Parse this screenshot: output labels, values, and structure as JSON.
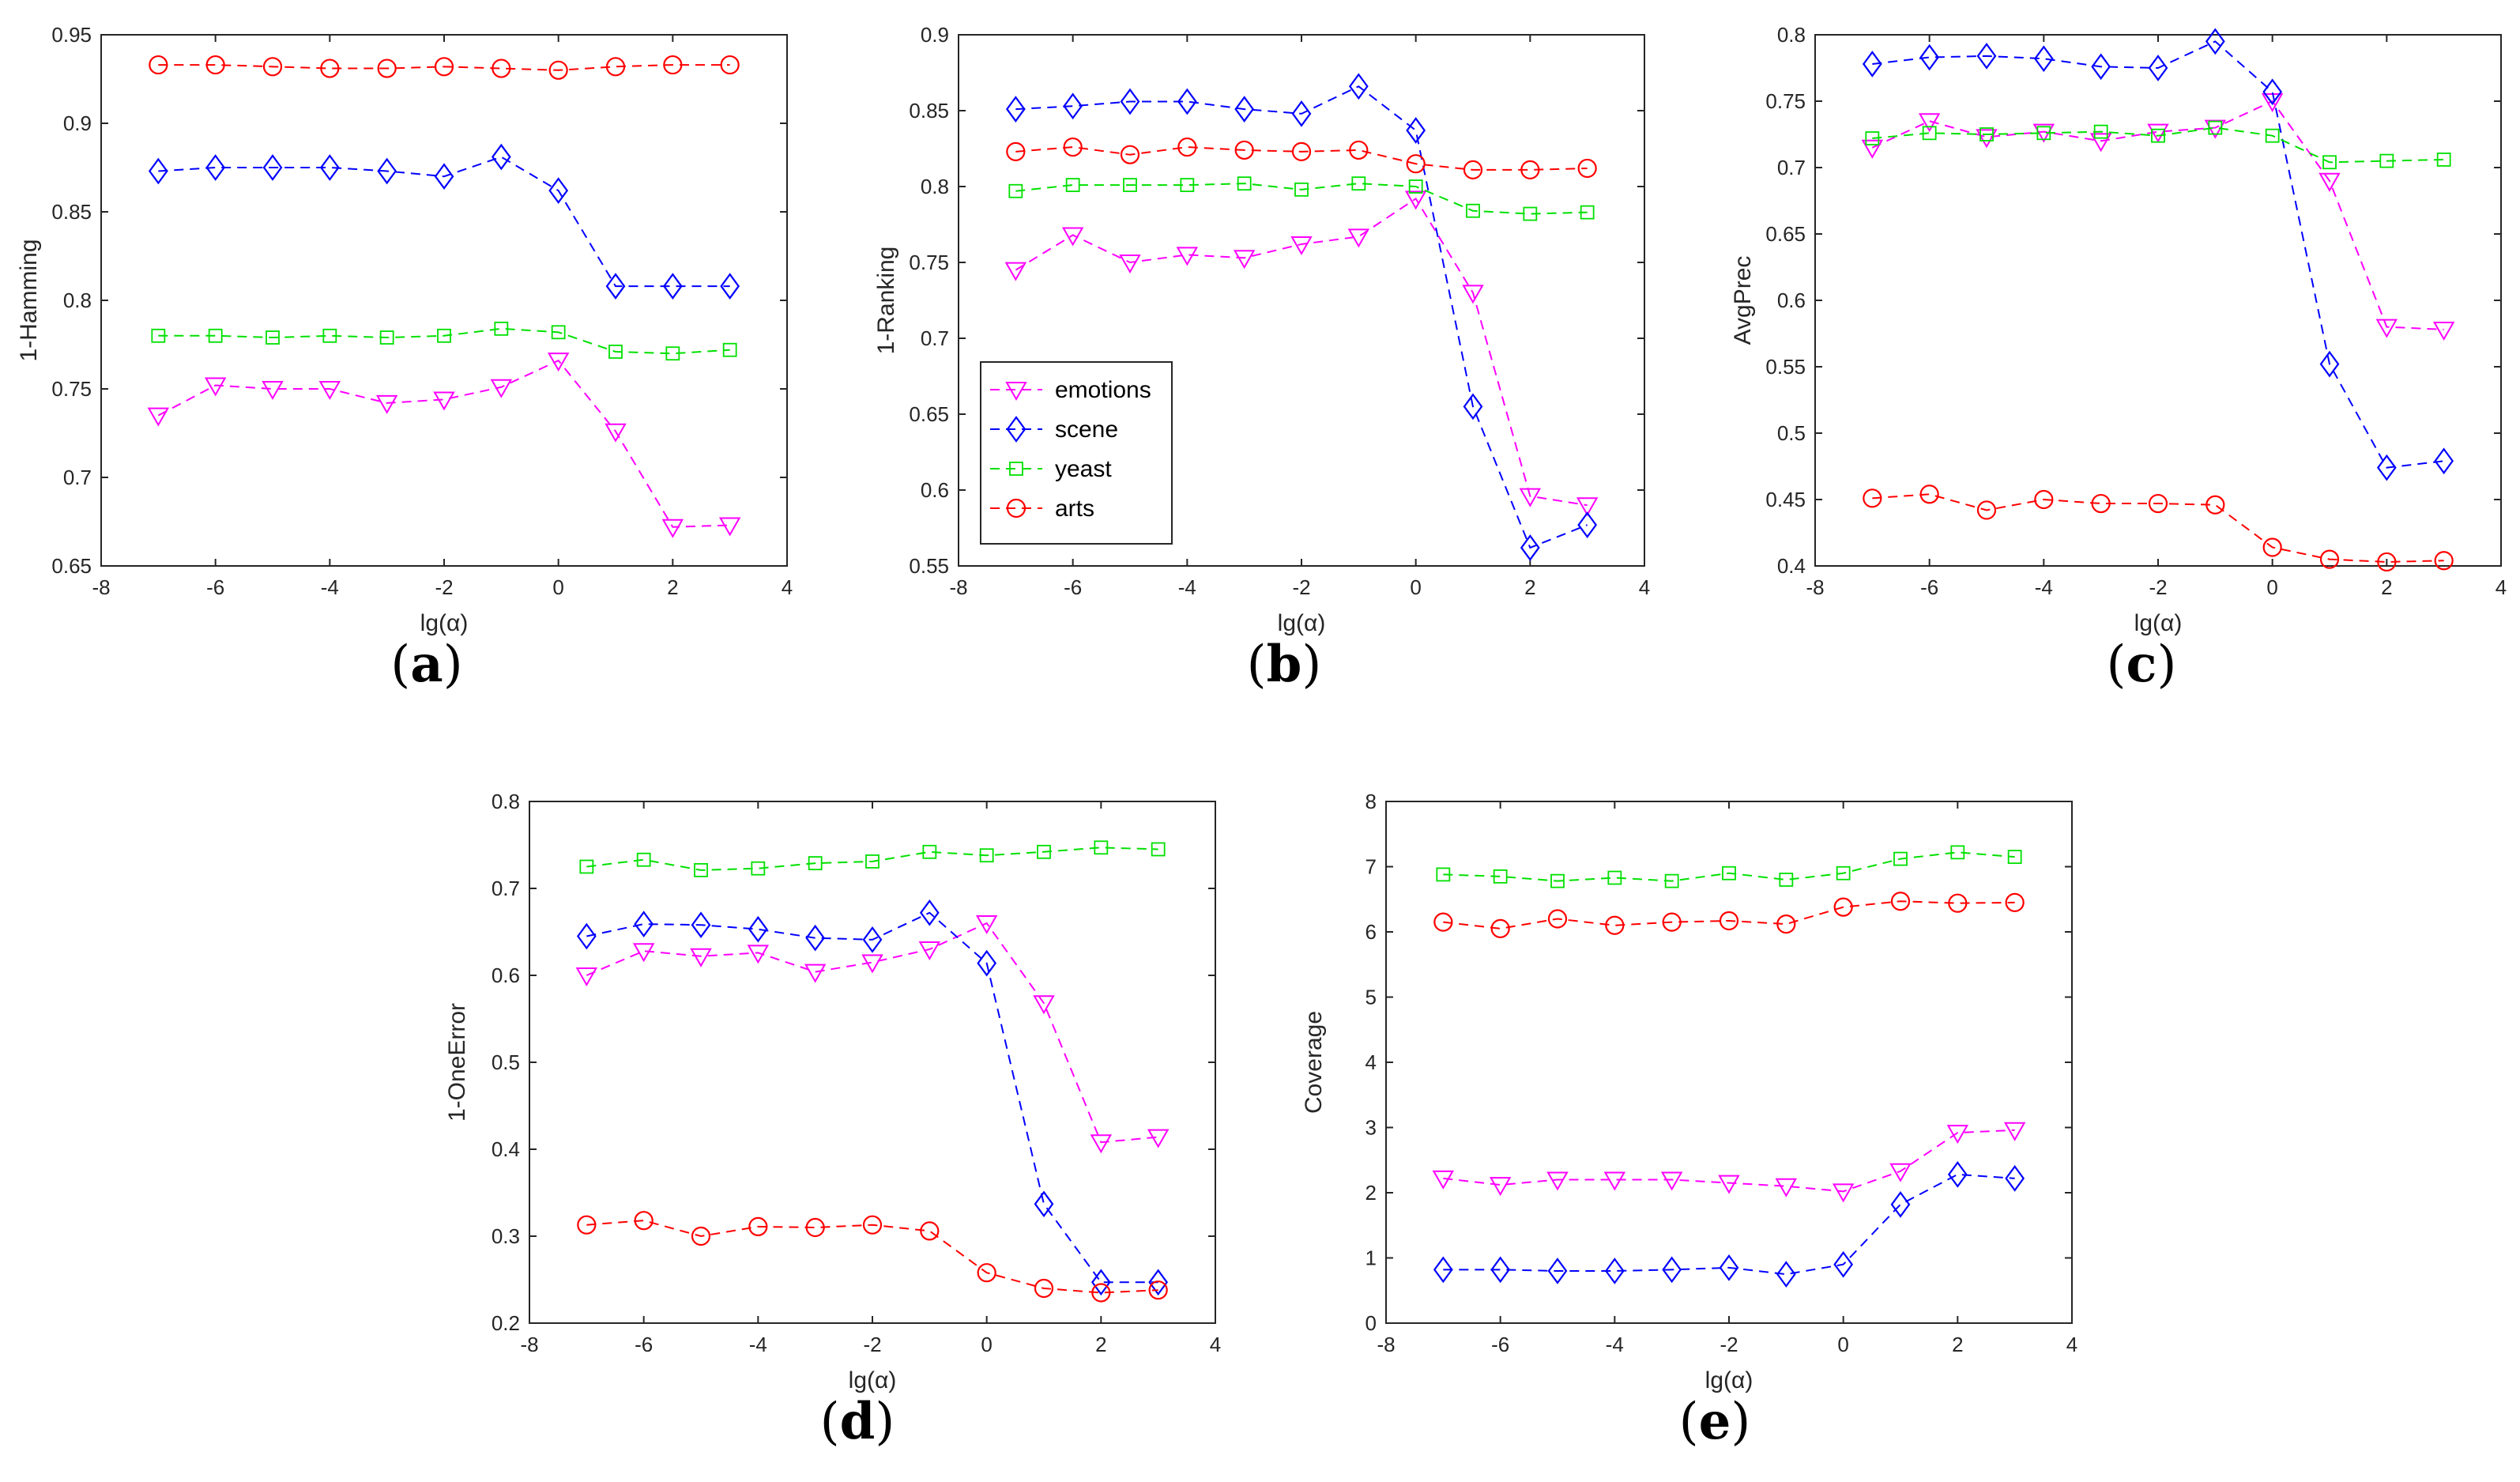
{
  "chart_data": [
    {
      "type": "line",
      "panel": "a",
      "xlabel": "lg(α)",
      "ylabel": "1-Hamming",
      "xlim": [
        -8,
        4
      ],
      "ylim": [
        0.65,
        0.95
      ],
      "xticks": [
        -8,
        -6,
        -4,
        -2,
        0,
        2,
        4
      ],
      "yticks": [
        0.65,
        0.7,
        0.75,
        0.8,
        0.85,
        0.9,
        0.95
      ],
      "x": [
        -7,
        -6,
        -5,
        -4,
        -3,
        -2,
        -1,
        0,
        1,
        2,
        3
      ],
      "grid": false,
      "series": [
        {
          "name": "emotions",
          "values": [
            0.735,
            0.752,
            0.75,
            0.75,
            0.742,
            0.744,
            0.751,
            0.766,
            0.726,
            0.672,
            0.673
          ]
        },
        {
          "name": "scene",
          "values": [
            0.873,
            0.875,
            0.875,
            0.875,
            0.873,
            0.87,
            0.881,
            0.862,
            0.808,
            0.808,
            0.808
          ]
        },
        {
          "name": "yeast",
          "values": [
            0.78,
            0.78,
            0.779,
            0.78,
            0.779,
            0.78,
            0.784,
            0.782,
            0.771,
            0.77,
            0.772
          ]
        },
        {
          "name": "arts",
          "values": [
            0.933,
            0.933,
            0.932,
            0.931,
            0.931,
            0.932,
            0.931,
            0.93,
            0.932,
            0.933,
            0.933
          ]
        }
      ]
    },
    {
      "type": "line",
      "panel": "b",
      "xlabel": "lg(α)",
      "ylabel": "1-Ranking",
      "xlim": [
        -8,
        4
      ],
      "ylim": [
        0.55,
        0.9
      ],
      "xticks": [
        -8,
        -6,
        -4,
        -2,
        0,
        2,
        4
      ],
      "yticks": [
        0.55,
        0.6,
        0.65,
        0.7,
        0.75,
        0.8,
        0.85,
        0.9
      ],
      "x": [
        -7,
        -6,
        -5,
        -4,
        -3,
        -2,
        -1,
        0,
        1,
        2,
        3
      ],
      "grid": false,
      "legend": "bottom-left",
      "series": [
        {
          "name": "emotions",
          "values": [
            0.745,
            0.768,
            0.75,
            0.755,
            0.753,
            0.762,
            0.767,
            0.792,
            0.73,
            0.596,
            0.59
          ]
        },
        {
          "name": "scene",
          "values": [
            0.851,
            0.853,
            0.856,
            0.856,
            0.851,
            0.848,
            0.866,
            0.837,
            0.655,
            0.562,
            0.577
          ]
        },
        {
          "name": "yeast",
          "values": [
            0.797,
            0.801,
            0.801,
            0.801,
            0.802,
            0.798,
            0.802,
            0.8,
            0.784,
            0.782,
            0.783
          ]
        },
        {
          "name": "arts",
          "values": [
            0.823,
            0.826,
            0.821,
            0.826,
            0.824,
            0.823,
            0.824,
            0.815,
            0.811,
            0.811,
            0.812
          ]
        }
      ]
    },
    {
      "type": "line",
      "panel": "c",
      "xlabel": "lg(α)",
      "ylabel": "AvgPrec",
      "xlim": [
        -8,
        4
      ],
      "ylim": [
        0.4,
        0.8
      ],
      "xticks": [
        -8,
        -6,
        -4,
        -2,
        0,
        2,
        4
      ],
      "yticks": [
        0.4,
        0.45,
        0.5,
        0.55,
        0.6,
        0.65,
        0.7,
        0.75,
        0.8
      ],
      "x": [
        -7,
        -6,
        -5,
        -4,
        -3,
        -2,
        -1,
        0,
        1,
        2,
        3
      ],
      "grid": false,
      "series": [
        {
          "name": "emotions",
          "values": [
            0.715,
            0.735,
            0.723,
            0.727,
            0.72,
            0.727,
            0.73,
            0.75,
            0.69,
            0.58,
            0.578
          ]
        },
        {
          "name": "scene",
          "values": [
            0.778,
            0.783,
            0.784,
            0.782,
            0.776,
            0.775,
            0.795,
            0.757,
            0.552,
            0.474,
            0.479
          ]
        },
        {
          "name": "yeast",
          "values": [
            0.722,
            0.726,
            0.725,
            0.726,
            0.727,
            0.724,
            0.73,
            0.724,
            0.704,
            0.705,
            0.706
          ]
        },
        {
          "name": "arts",
          "values": [
            0.451,
            0.454,
            0.442,
            0.45,
            0.447,
            0.447,
            0.446,
            0.414,
            0.405,
            0.403,
            0.404
          ]
        }
      ]
    },
    {
      "type": "line",
      "panel": "d",
      "xlabel": "lg(α)",
      "ylabel": "1-OneError",
      "xlim": [
        -8,
        4
      ],
      "ylim": [
        0.2,
        0.8
      ],
      "xticks": [
        -8,
        -6,
        -4,
        -2,
        0,
        2,
        4
      ],
      "yticks": [
        0.2,
        0.3,
        0.4,
        0.5,
        0.6,
        0.7,
        0.8
      ],
      "x": [
        -7,
        -6,
        -5,
        -4,
        -3,
        -2,
        -1,
        0,
        1,
        2,
        3
      ],
      "grid": false,
      "series": [
        {
          "name": "emotions",
          "values": [
            0.6,
            0.628,
            0.622,
            0.626,
            0.604,
            0.615,
            0.63,
            0.66,
            0.568,
            0.408,
            0.414
          ]
        },
        {
          "name": "scene",
          "values": [
            0.645,
            0.659,
            0.658,
            0.653,
            0.643,
            0.641,
            0.672,
            0.614,
            0.337,
            0.247,
            0.247
          ]
        },
        {
          "name": "yeast",
          "values": [
            0.725,
            0.733,
            0.721,
            0.723,
            0.729,
            0.731,
            0.742,
            0.738,
            0.742,
            0.747,
            0.745
          ]
        },
        {
          "name": "arts",
          "values": [
            0.313,
            0.318,
            0.3,
            0.311,
            0.31,
            0.313,
            0.306,
            0.258,
            0.24,
            0.235,
            0.238
          ]
        }
      ]
    },
    {
      "type": "line",
      "panel": "e",
      "xlabel": "lg(α)",
      "ylabel": "Coverage",
      "xlim": [
        -8,
        4
      ],
      "ylim": [
        0,
        8
      ],
      "xticks": [
        -8,
        -6,
        -4,
        -2,
        0,
        2,
        4
      ],
      "yticks": [
        0,
        1,
        2,
        3,
        4,
        5,
        6,
        7,
        8
      ],
      "x": [
        -7,
        -6,
        -5,
        -4,
        -3,
        -2,
        -1,
        0,
        1,
        2,
        3
      ],
      "grid": false,
      "series": [
        {
          "name": "emotions",
          "values": [
            2.22,
            2.12,
            2.2,
            2.2,
            2.2,
            2.15,
            2.1,
            2.02,
            2.33,
            2.92,
            2.96
          ]
        },
        {
          "name": "scene",
          "values": [
            0.82,
            0.82,
            0.8,
            0.8,
            0.82,
            0.85,
            0.75,
            0.9,
            1.82,
            2.28,
            2.22
          ]
        },
        {
          "name": "yeast",
          "values": [
            6.88,
            6.85,
            6.78,
            6.83,
            6.78,
            6.9,
            6.8,
            6.9,
            7.12,
            7.22,
            7.15
          ]
        },
        {
          "name": "arts",
          "values": [
            6.15,
            6.05,
            6.2,
            6.1,
            6.15,
            6.17,
            6.12,
            6.38,
            6.47,
            6.44,
            6.45
          ]
        }
      ]
    }
  ],
  "legend": {
    "entries": [
      "emotions",
      "scene",
      "yeast",
      "arts"
    ]
  },
  "series_style": {
    "emotions": {
      "color": "#ff00ff",
      "marker": "triangle-down-icon"
    },
    "scene": {
      "color": "#0000ff",
      "marker": "diamond-icon"
    },
    "yeast": {
      "color": "#00e000",
      "marker": "square-icon"
    },
    "arts": {
      "color": "#ff0000",
      "marker": "circle-icon"
    }
  },
  "panel_labels": [
    {
      "open": "(",
      "letter": "a",
      "close": ")"
    },
    {
      "open": "(",
      "letter": "b",
      "close": ")"
    },
    {
      "open": "(",
      "letter": "c",
      "close": ")"
    },
    {
      "open": "(",
      "letter": "d",
      "close": ")"
    },
    {
      "open": "(",
      "letter": "e",
      "close": ")"
    }
  ]
}
